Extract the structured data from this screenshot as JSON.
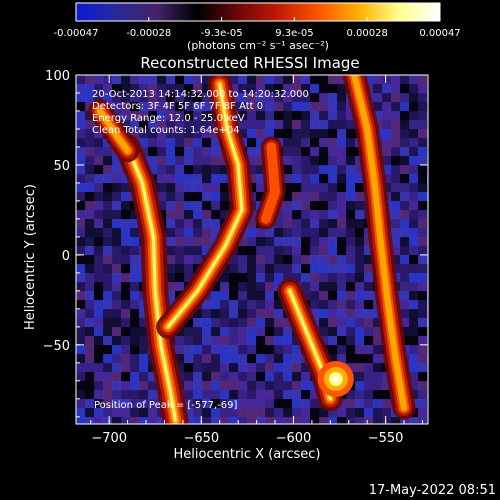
{
  "colorbar": {
    "tick_labels": [
      "-0.00047",
      "-0.00028",
      "-9.3e-05",
      "9.3e-05",
      "0.00028",
      "0.00047"
    ],
    "units_label": "(photons cm⁻² s⁻¹ asec⁻²)",
    "colors": [
      "#0a1bd6",
      "#2a2a9a",
      "#44226a",
      "#000000",
      "#6b0707",
      "#c11c04",
      "#ff5500",
      "#ffb000",
      "#ffff90",
      "#ffffff"
    ]
  },
  "chart_data": {
    "type": "heatmap",
    "title": "Reconstructed RHESSI Image",
    "xlabel": "Heliocentric X (arcsec)",
    "ylabel": "Heliocentric Y (arcsec)",
    "xlim": [
      -718,
      -527
    ],
    "ylim": [
      -94,
      100
    ],
    "x_ticks": [
      -700,
      -650,
      -600,
      -550
    ],
    "y_ticks": [
      -50,
      0,
      50,
      100
    ],
    "x_tick_labels": [
      "−700",
      "−650",
      "−600",
      "−550"
    ],
    "y_tick_labels": [
      "−50",
      "0",
      "50",
      "100"
    ],
    "annotations": [
      "20-Oct-2013 14:14:32.000 to 14:20:32.000",
      "Detectors: 3F 4F 5F 6F 7F 8F  Att 0",
      "Energy Range: 12.0 - 25.0 keV",
      "Clean      Total counts: 1.64e+04"
    ],
    "peak_label": "Position of Peak = [-577,-69]",
    "peak": {
      "x": -577,
      "y": -69
    },
    "ridges": [
      {
        "points": [
          [
            -690,
            60
          ],
          [
            -682,
            40
          ],
          [
            -676,
            10
          ],
          [
            -675,
            -20
          ],
          [
            -672,
            -50
          ],
          [
            -667,
            -75
          ],
          [
            -664,
            -92
          ]
        ],
        "intensity": 1.0
      },
      {
        "points": [
          [
            -705,
            80
          ],
          [
            -695,
            65
          ],
          [
            -690,
            58
          ]
        ],
        "intensity": 0.75
      },
      {
        "points": [
          [
            -640,
            95
          ],
          [
            -636,
            70
          ],
          [
            -630,
            50
          ],
          [
            -628,
            25
          ],
          [
            -637,
            5
          ],
          [
            -652,
            -20
          ],
          [
            -668,
            -40
          ]
        ],
        "intensity": 0.8
      },
      {
        "points": [
          [
            -612,
            60
          ],
          [
            -610,
            35
          ],
          [
            -615,
            20
          ]
        ],
        "intensity": 0.55
      },
      {
        "points": [
          [
            -602,
            -20
          ],
          [
            -592,
            -45
          ],
          [
            -584,
            -65
          ],
          [
            -580,
            -80
          ]
        ],
        "intensity": 0.9
      },
      {
        "points": [
          [
            -567,
            100
          ],
          [
            -560,
            70
          ],
          [
            -556,
            40
          ],
          [
            -553,
            10
          ],
          [
            -549,
            -25
          ],
          [
            -545,
            -55
          ],
          [
            -540,
            -85
          ]
        ],
        "intensity": 0.75
      }
    ]
  },
  "footer": {
    "date": "17-May-2022 08:51"
  }
}
